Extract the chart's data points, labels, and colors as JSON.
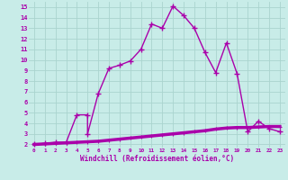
{
  "xlabel": "Windchill (Refroidissement éolien,°C)",
  "background_color": "#c8ece8",
  "grid_color": "#aad4ce",
  "line_color": "#aa00aa",
  "x_ticks": [
    0,
    1,
    2,
    3,
    4,
    5,
    6,
    7,
    8,
    9,
    10,
    11,
    12,
    13,
    14,
    15,
    16,
    17,
    18,
    19,
    20,
    21,
    22,
    23
  ],
  "y_ticks": [
    2,
    3,
    4,
    5,
    6,
    7,
    8,
    9,
    10,
    11,
    12,
    13,
    14,
    15
  ],
  "ylim": [
    1.7,
    15.5
  ],
  "xlim": [
    -0.5,
    23.5
  ],
  "line1_x": [
    0,
    1,
    2,
    3,
    4,
    5,
    6,
    7,
    8,
    9,
    10,
    11,
    12,
    13,
    14,
    15,
    16,
    17,
    18,
    19,
    20,
    21,
    22,
    23
  ],
  "line1_y": [
    2.0,
    2.05,
    2.1,
    2.15,
    2.2,
    2.25,
    2.3,
    2.4,
    2.5,
    2.6,
    2.7,
    2.8,
    2.9,
    3.0,
    3.1,
    3.2,
    3.3,
    3.45,
    3.55,
    3.6,
    3.6,
    3.65,
    3.7,
    3.7
  ],
  "line2_x": [
    0,
    1,
    2,
    3,
    4,
    5,
    5,
    6,
    7,
    8,
    9,
    10,
    11,
    12,
    13,
    14,
    15,
    16,
    17,
    18,
    19,
    20,
    21,
    22,
    23
  ],
  "line2_y": [
    2.0,
    2.1,
    2.2,
    2.2,
    4.8,
    4.8,
    3.0,
    6.8,
    9.2,
    9.5,
    9.9,
    11.0,
    13.4,
    13.0,
    15.1,
    14.2,
    13.0,
    10.7,
    8.8,
    11.6,
    8.7,
    3.2,
    4.2,
    3.5,
    3.2
  ]
}
